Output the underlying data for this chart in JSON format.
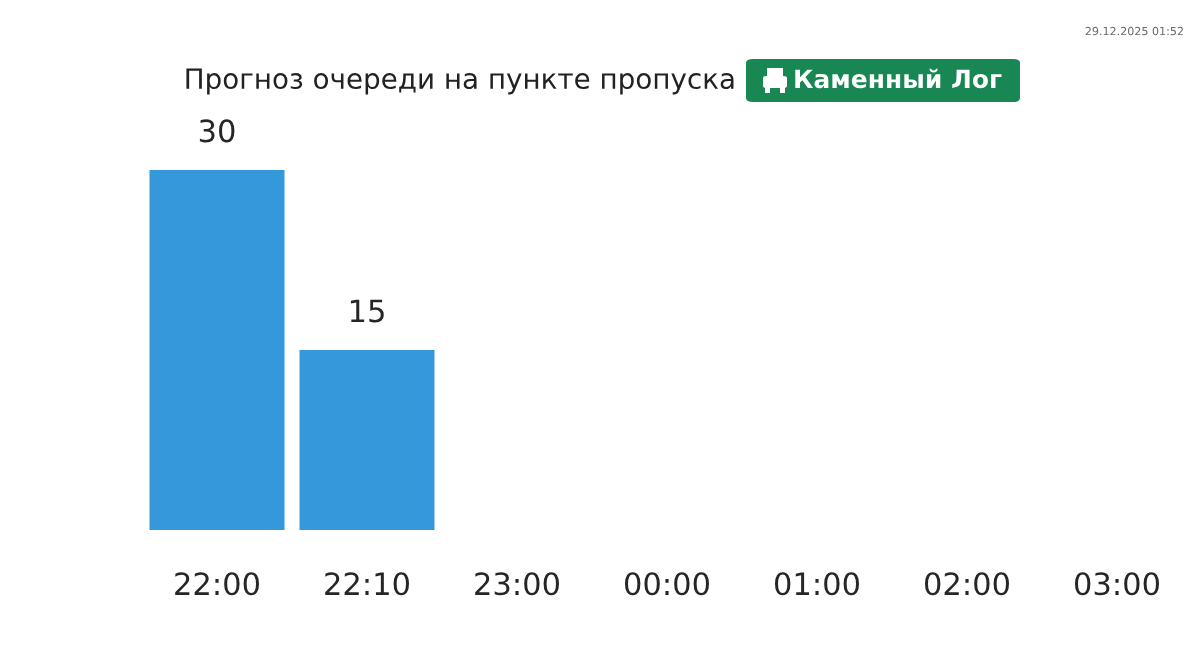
{
  "chart_data": {
    "type": "bar",
    "title": "Прогноз очереди на пункте пропуска",
    "subtitle": "Каменный Лог",
    "categories": [
      "22:00",
      "22:10",
      "23:00",
      "00:00",
      "01:00",
      "02:00",
      "03:00"
    ],
    "values": [
      30,
      15,
      null,
      null,
      null,
      null,
      null
    ],
    "color": "#3498db",
    "data_labels": true,
    "grid": false,
    "legend": false,
    "annotations": [
      "29.12.2025 01:52"
    ]
  }
}
